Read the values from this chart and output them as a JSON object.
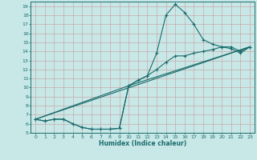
{
  "xlabel": "Humidex (Indice chaleur)",
  "bg_color": "#c8e8e8",
  "line_color": "#1a6b6b",
  "grid_color": "#b0d4d4",
  "xlim": [
    -0.5,
    23.5
  ],
  "ylim": [
    5,
    19.5
  ],
  "xticks": [
    0,
    1,
    2,
    3,
    4,
    5,
    6,
    7,
    8,
    9,
    10,
    11,
    12,
    13,
    14,
    15,
    16,
    17,
    18,
    19,
    20,
    21,
    22,
    23
  ],
  "yticks": [
    5,
    6,
    7,
    8,
    9,
    10,
    11,
    12,
    13,
    14,
    15,
    16,
    17,
    18,
    19
  ],
  "curve1_x": [
    0,
    1,
    2,
    3,
    4,
    5,
    6,
    7,
    8,
    9,
    10,
    11,
    12,
    13,
    14,
    15,
    16,
    17,
    18,
    19,
    20,
    21,
    22,
    23
  ],
  "curve1_y": [
    6.5,
    6.3,
    6.5,
    6.5,
    6.0,
    5.6,
    5.4,
    5.4,
    5.4,
    5.5,
    10.2,
    10.8,
    11.3,
    13.8,
    18.0,
    19.2,
    18.3,
    17.0,
    15.3,
    14.8,
    14.5,
    14.3,
    13.8,
    14.5
  ],
  "curve2_x": [
    0,
    1,
    2,
    3,
    4,
    5,
    6,
    7,
    8,
    9,
    10,
    11,
    12,
    13,
    14,
    15,
    16,
    17,
    18,
    19,
    20,
    21,
    22,
    23
  ],
  "curve2_y": [
    6.5,
    6.3,
    6.5,
    6.5,
    6.0,
    5.6,
    5.4,
    5.4,
    5.4,
    5.5,
    10.2,
    10.8,
    11.3,
    12.0,
    12.8,
    13.5,
    13.5,
    13.8,
    14.0,
    14.2,
    14.5,
    14.5,
    14.0,
    14.5
  ],
  "curve3_x": [
    0,
    23
  ],
  "curve3_y": [
    6.5,
    14.5
  ],
  "curve4_x": [
    0,
    10,
    23
  ],
  "curve4_y": [
    6.5,
    10.2,
    14.5
  ]
}
